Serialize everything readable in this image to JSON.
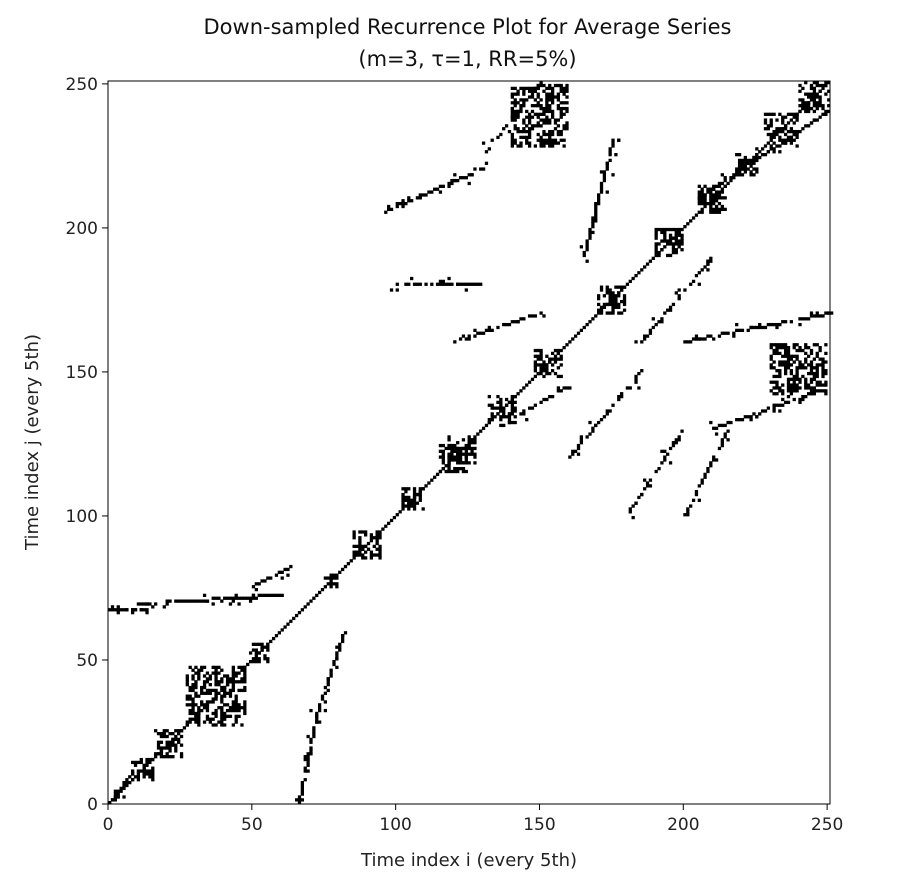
{
  "chart_data": {
    "type": "heatmap",
    "title": "Down-sampled Recurrence Plot for Average Series",
    "subtitle": "(m=3, τ=1, RR=5%)",
    "xlabel": "Time index i (every 5th)",
    "ylabel": "Time index j (every 5th)",
    "xlim": [
      0,
      251
    ],
    "ylim": [
      0,
      251
    ],
    "xticks": [
      0,
      50,
      100,
      150,
      200,
      250
    ],
    "yticks": [
      0,
      50,
      100,
      150,
      200,
      250
    ],
    "xtick_labels": [
      "0",
      "50",
      "100",
      "150",
      "200",
      "250"
    ],
    "ytick_labels": [
      "0",
      "50",
      "100",
      "150",
      "200",
      "250"
    ],
    "grid": false,
    "colormap": [
      "#ffffff",
      "#000000"
    ],
    "main_diagonal": [
      0,
      251
    ],
    "blocks": [
      {
        "i": [
          8,
          16
        ],
        "j": [
          8,
          16
        ]
      },
      {
        "i": [
          16,
          26
        ],
        "j": [
          16,
          26
        ]
      },
      {
        "i": [
          27,
          48
        ],
        "j": [
          27,
          48
        ]
      },
      {
        "i": [
          49,
          56
        ],
        "j": [
          49,
          56
        ]
      },
      {
        "i": [
          75,
          80
        ],
        "j": [
          75,
          80
        ]
      },
      {
        "i": [
          85,
          95
        ],
        "j": [
          85,
          95
        ]
      },
      {
        "i": [
          102,
          110
        ],
        "j": [
          102,
          110
        ]
      },
      {
        "i": [
          115,
          125
        ],
        "j": [
          115,
          125
        ]
      },
      {
        "i": [
          118,
          128
        ],
        "j": [
          118,
          128
        ]
      },
      {
        "i": [
          132,
          142
        ],
        "j": [
          132,
          142
        ]
      },
      {
        "i": [
          148,
          158
        ],
        "j": [
          148,
          158
        ]
      },
      {
        "i": [
          170,
          180
        ],
        "j": [
          170,
          180
        ]
      },
      {
        "i": [
          190,
          200
        ],
        "j": [
          190,
          200
        ]
      },
      {
        "i": [
          205,
          215
        ],
        "j": [
          205,
          215
        ]
      },
      {
        "i": [
          218,
          226
        ],
        "j": [
          218,
          226
        ]
      },
      {
        "i": [
          228,
          240
        ],
        "j": [
          228,
          240
        ]
      },
      {
        "i": [
          240,
          251
        ],
        "j": [
          240,
          251
        ]
      },
      {
        "i": [
          230,
          250
        ],
        "j": [
          142,
          160
        ]
      },
      {
        "i": [
          140,
          160
        ],
        "j": [
          228,
          250
        ]
      }
    ],
    "segments": [
      {
        "i": [
          0,
          12
        ],
        "j": [
          67,
          67
        ]
      },
      {
        "i": [
          10,
          60
        ],
        "j": [
          69,
          72
        ]
      },
      {
        "i": [
          50,
          62
        ],
        "j": [
          75,
          81
        ]
      },
      {
        "i": [
          66,
          72
        ],
        "j": [
          0,
          30
        ]
      },
      {
        "i": [
          72,
          82
        ],
        "j": [
          30,
          60
        ]
      },
      {
        "i": [
          0,
          8
        ],
        "j": [
          0,
          10
        ]
      },
      {
        "i": [
          100,
          130
        ],
        "j": [
          180,
          180
        ]
      },
      {
        "i": [
          95,
          130
        ],
        "j": [
          205,
          220
        ]
      },
      {
        "i": [
          130,
          150
        ],
        "j": [
          225,
          250
        ]
      },
      {
        "i": [
          180,
          200
        ],
        "j": [
          100,
          130
        ]
      },
      {
        "i": [
          200,
          215
        ],
        "j": [
          100,
          130
        ]
      },
      {
        "i": [
          210,
          245
        ],
        "j": [
          130,
          142
        ]
      },
      {
        "i": [
          160,
          185
        ],
        "j": [
          120,
          150
        ]
      },
      {
        "i": [
          165,
          175
        ],
        "j": [
          190,
          230
        ]
      },
      {
        "i": [
          185,
          210
        ],
        "j": [
          160,
          190
        ]
      },
      {
        "i": [
          200,
          251
        ],
        "j": [
          160,
          170
        ]
      },
      {
        "i": [
          205,
          250
        ],
        "j": [
          210,
          240
        ]
      },
      {
        "i": [
          120,
          150
        ],
        "j": [
          160,
          170
        ]
      },
      {
        "i": [
          135,
          160
        ],
        "j": [
          130,
          145
        ]
      }
    ]
  }
}
